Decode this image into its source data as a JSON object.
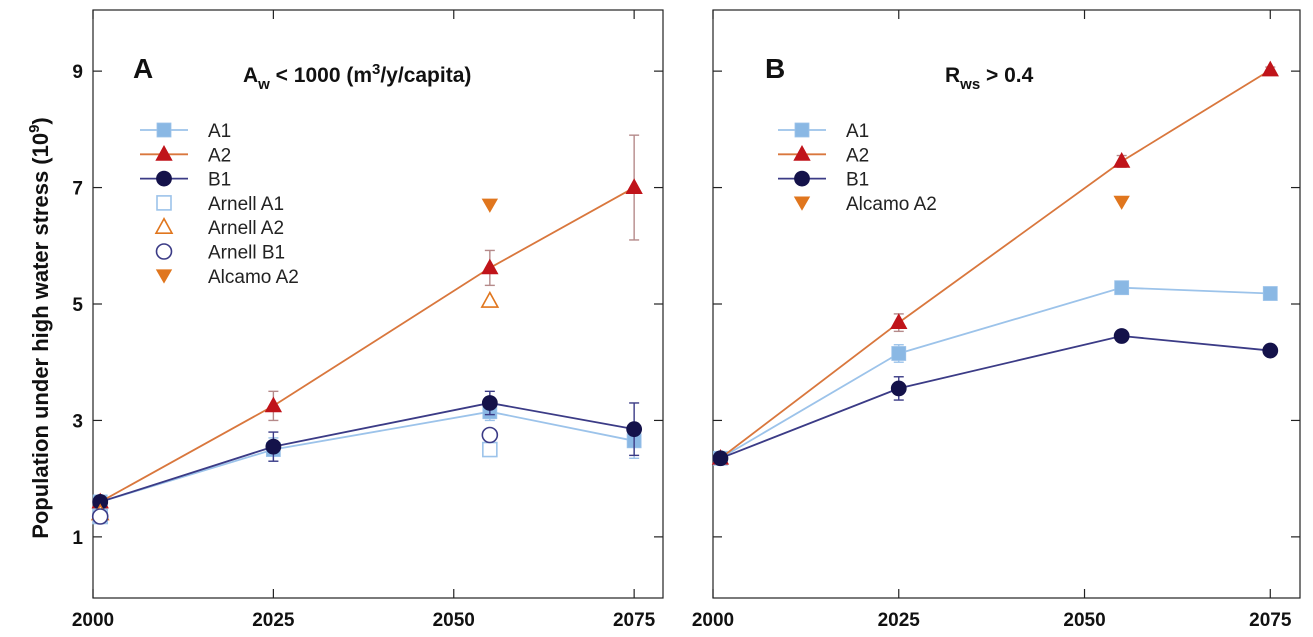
{
  "figure": {
    "ylabel_main": "Population under high water stress (10",
    "ylabel_sup": "9",
    "ylabel_close": ")"
  },
  "colors": {
    "A1": "#9cc3ea",
    "A1_marker": "#8ab8e4",
    "A2": "#c0141a",
    "A2_line": "#d9773d",
    "B1": "#14124a",
    "B1_line": "#3b3b86",
    "Alcamo": "#e0761e",
    "errorbar": "#b58a8a"
  },
  "chart_data": [
    {
      "type": "line",
      "panel": "A",
      "title_parts": [
        "A",
        "w",
        " < 1000 (m",
        "3",
        "/y/capita)"
      ],
      "x_ticks": [
        2000,
        2025,
        2050,
        2075
      ],
      "y_ticks": [
        1,
        3,
        5,
        7,
        9
      ],
      "xlim": [
        2000,
        2079
      ],
      "ylim": [
        -0.05,
        10.05
      ],
      "grid": false,
      "legend_position": "top-left",
      "series": [
        {
          "name": "A1",
          "x": [
            2001,
            2025,
            2055,
            2075
          ],
          "y": [
            1.6,
            2.5,
            3.15,
            2.65
          ],
          "yerr": [
            0.05,
            0.2,
            0.15,
            0.3
          ],
          "marker": "square",
          "line": true
        },
        {
          "name": "A2",
          "x": [
            2001,
            2025,
            2055,
            2075
          ],
          "y": [
            1.6,
            3.25,
            5.62,
            7.0
          ],
          "yerr": [
            0.05,
            0.25,
            0.3,
            0.9
          ],
          "marker": "triangle-up",
          "line": true
        },
        {
          "name": "B1",
          "x": [
            2001,
            2025,
            2055,
            2075
          ],
          "y": [
            1.6,
            2.55,
            3.3,
            2.85
          ],
          "yerr": [
            0.05,
            0.25,
            0.2,
            0.45
          ],
          "marker": "circle",
          "line": true
        },
        {
          "name": "Arnell A1",
          "x": [
            2001,
            2055
          ],
          "y": [
            1.35,
            2.5
          ],
          "marker": "open-square",
          "line": false
        },
        {
          "name": "Arnell A2",
          "x": [
            2001,
            2055
          ],
          "y": [
            1.4,
            5.05
          ],
          "marker": "open-triangle-up",
          "line": false
        },
        {
          "name": "Arnell B1",
          "x": [
            2001,
            2055
          ],
          "y": [
            1.35,
            2.75
          ],
          "marker": "open-circle",
          "line": false
        },
        {
          "name": "Alcamo A2",
          "x": [
            2055
          ],
          "y": [
            6.7
          ],
          "marker": "triangle-down",
          "line": false
        }
      ]
    },
    {
      "type": "line",
      "panel": "B",
      "title_parts": [
        "R",
        "ws",
        " > 0.4"
      ],
      "x_ticks": [
        2000,
        2025,
        2050,
        2075
      ],
      "y_ticks": [
        1,
        3,
        5,
        7,
        9
      ],
      "xlim": [
        2000,
        2079
      ],
      "ylim": [
        -0.05,
        10.05
      ],
      "grid": false,
      "legend_position": "top-left",
      "series": [
        {
          "name": "A1",
          "x": [
            2001,
            2025,
            2055,
            2075
          ],
          "y": [
            2.35,
            4.15,
            5.28,
            5.18
          ],
          "yerr": [
            0.05,
            0.15,
            0.05,
            0.05
          ],
          "marker": "square",
          "line": true
        },
        {
          "name": "A2",
          "x": [
            2001,
            2025,
            2055,
            2075
          ],
          "y": [
            2.35,
            4.68,
            7.45,
            9.02
          ],
          "yerr": [
            0.05,
            0.15,
            0.1,
            0.05
          ],
          "marker": "triangle-up",
          "line": true
        },
        {
          "name": "B1",
          "x": [
            2001,
            2025,
            2055,
            2075
          ],
          "y": [
            2.35,
            3.55,
            4.45,
            4.2
          ],
          "yerr": [
            0.05,
            0.2,
            0.05,
            0.05
          ],
          "marker": "circle",
          "line": true
        },
        {
          "name": "Alcamo A2",
          "x": [
            2055
          ],
          "y": [
            6.75
          ],
          "marker": "triangle-down",
          "line": false
        }
      ]
    }
  ]
}
